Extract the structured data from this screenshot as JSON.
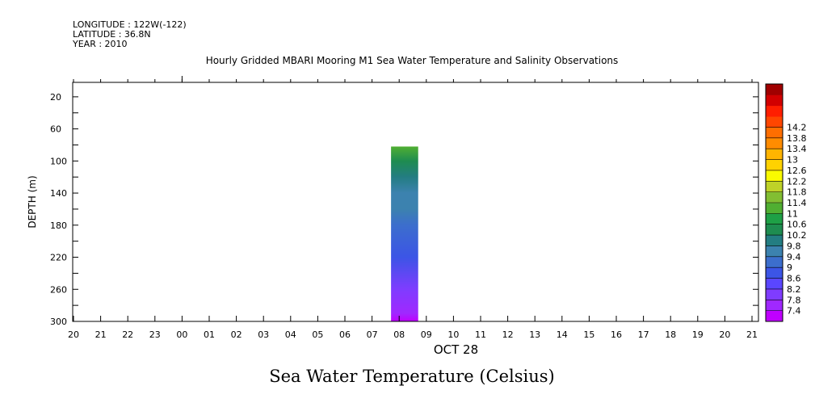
{
  "header": {
    "longitude": "LONGITUDE : 122W(-122)",
    "latitude": "LATITUDE : 36.8N",
    "year": "YEAR : 2010"
  },
  "chart_data": {
    "type": "heatmap",
    "title": "Hourly Gridded MBARI Mooring M1 Sea Water Temperature and Salinity Observations",
    "bottom_title": "Sea Water Temperature (Celsius)",
    "ylabel": "DEPTH (m)",
    "xlabel": "OCT 28",
    "x_ticks": [
      "20",
      "21",
      "22",
      "23",
      "00",
      "01",
      "02",
      "03",
      "04",
      "05",
      "06",
      "07",
      "08",
      "09",
      "10",
      "11",
      "12",
      "13",
      "14",
      "15",
      "16",
      "17",
      "18",
      "19",
      "20",
      "21"
    ],
    "y_ticks": [
      20,
      60,
      100,
      140,
      180,
      220,
      260,
      300
    ],
    "ylim": [
      300,
      2
    ],
    "y_reversed": true,
    "colorbar": {
      "levels": [
        "7.4",
        "7.8",
        "8.2",
        "8.6",
        "9",
        "9.4",
        "9.8",
        "10.2",
        "10.6",
        "11",
        "11.4",
        "11.8",
        "12.2",
        "12.6",
        "13",
        "13.4",
        "13.8",
        "14.2"
      ],
      "colors": [
        "#c000ff",
        "#a028ff",
        "#7f3cff",
        "#5a46ff",
        "#3c55e6",
        "#3c6ecd",
        "#3c82af",
        "#237d82",
        "#1e8c50",
        "#1ea046",
        "#50af32",
        "#82be32",
        "#bed228",
        "#fafa00",
        "#ffd200",
        "#ffb400",
        "#ff8c00",
        "#ff6e00",
        "#ff4600",
        "#ff1e00",
        "#d20000",
        "#a00000"
      ]
    },
    "data_column": {
      "x_start_index": 11.7,
      "x_end_index": 12.7,
      "depth_top": 82,
      "depth_bottom": 300,
      "profile": [
        {
          "depth": 82,
          "value": 10.6
        },
        {
          "depth": 100,
          "value": 10.1
        },
        {
          "depth": 120,
          "value": 9.8
        },
        {
          "depth": 140,
          "value": 9.5
        },
        {
          "depth": 160,
          "value": 9.3
        },
        {
          "depth": 180,
          "value": 8.9
        },
        {
          "depth": 220,
          "value": 8.6
        },
        {
          "depth": 260,
          "value": 8.2
        },
        {
          "depth": 290,
          "value": 7.8
        },
        {
          "depth": 300,
          "value": 7.5
        }
      ]
    }
  }
}
